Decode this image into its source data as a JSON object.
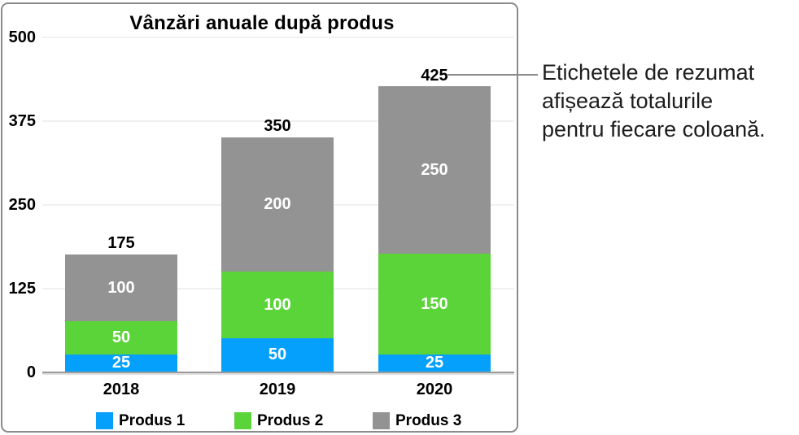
{
  "chart_data": {
    "type": "bar",
    "stacked": true,
    "title": "Vânzări anuale după produs",
    "categories": [
      "2018",
      "2019",
      "2020"
    ],
    "series": [
      {
        "name": "Produs 1",
        "color": "#05A0FB",
        "values": [
          25,
          50,
          25
        ]
      },
      {
        "name": "Produs 2",
        "color": "#5BD439",
        "values": [
          50,
          100,
          150
        ]
      },
      {
        "name": "Produs 3",
        "color": "#939393",
        "values": [
          100,
          200,
          250
        ]
      }
    ],
    "totals": [
      175,
      350,
      425
    ],
    "y_axis": {
      "ticks": [
        500,
        375,
        250,
        125,
        0
      ],
      "min": 0,
      "max": 500
    },
    "grid": true,
    "legend_position": "bottom",
    "xlabel": "",
    "ylabel": ""
  },
  "callout": {
    "text": "Etichetele de rezumat\nafișează totalurile\npentru fiecare coloană."
  },
  "colors": {
    "produs1_blue": "#05A0FB",
    "produs2_green": "#5BD439",
    "produs3_gray": "#939393",
    "panel_border": "#8b8b8b",
    "gridline": "#f0f0f0",
    "axis_line": "#9b9b9b",
    "callout_line": "#8c8c8c",
    "text": "#1d1d1f"
  }
}
